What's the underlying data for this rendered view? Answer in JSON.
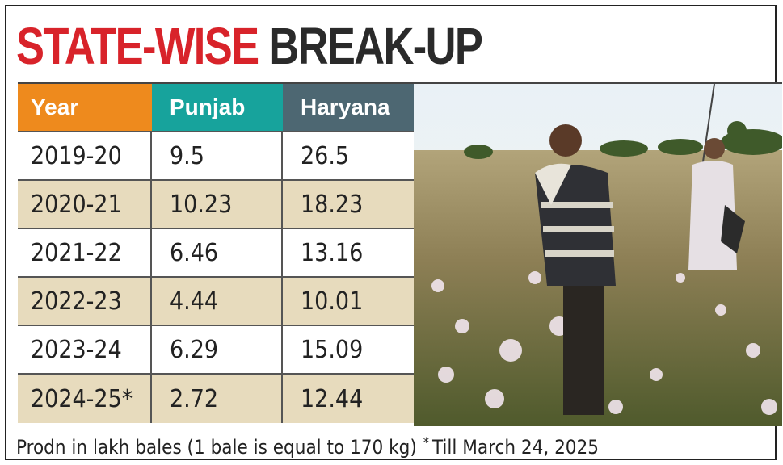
{
  "header": {
    "title_red": "STATE-WISE",
    "title_dark": "BREAK-UP"
  },
  "table": {
    "columns": [
      "Year",
      "Punjab",
      "Haryana"
    ],
    "rows": [
      [
        "2019-20",
        "9.5",
        "26.5"
      ],
      [
        "2020-21",
        "10.23",
        "18.23"
      ],
      [
        "2021-22",
        "6.46",
        "13.16"
      ],
      [
        "2022-23",
        "4.44",
        "10.01"
      ],
      [
        "2023-24",
        "6.29",
        "15.09"
      ],
      [
        "2024-25*",
        "2.72",
        "12.44"
      ]
    ]
  },
  "footnote": {
    "unit": "Prodn in lakh bales (1 bale is equal to 170 kg)",
    "star": "*",
    "note": "Till March 24, 2025"
  }
}
